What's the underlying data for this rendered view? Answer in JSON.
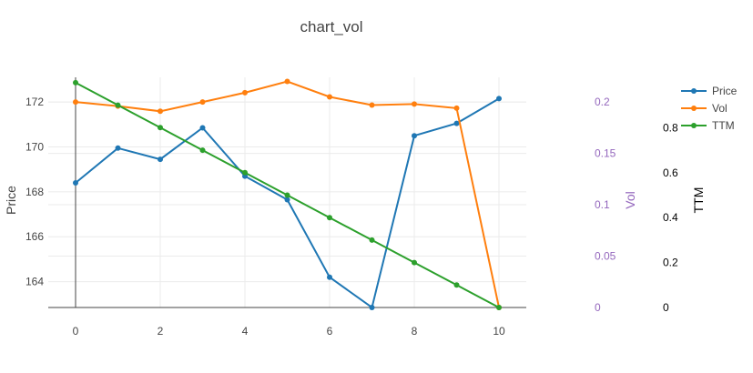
{
  "chart_data": {
    "type": "line",
    "title": "chart_vol",
    "x": [
      0,
      1,
      2,
      3,
      4,
      5,
      6,
      7,
      8,
      9,
      10
    ],
    "xticks": [
      0,
      2,
      4,
      6,
      8,
      10
    ],
    "series": [
      {
        "name": "Price",
        "color": "#1f77b4",
        "axis": "y",
        "values": [
          168.4,
          169.95,
          169.45,
          170.85,
          168.7,
          167.65,
          164.2,
          162.85,
          170.5,
          171.05,
          172.15
        ]
      },
      {
        "name": "Vol",
        "color": "#ff7f0e",
        "axis": "y2",
        "values": [
          0.2,
          0.196,
          0.191,
          0.2,
          0.209,
          0.22,
          0.205,
          0.197,
          0.198,
          0.194,
          0.0
        ]
      },
      {
        "name": "TTM",
        "color": "#2ca02c",
        "axis": "y3",
        "values": [
          1.0,
          0.9,
          0.8,
          0.7,
          0.6,
          0.5,
          0.4,
          0.3,
          0.2,
          0.1,
          0.0
        ]
      }
    ],
    "axes": {
      "y": {
        "label": "Price",
        "range": [
          162.85,
          173.1
        ],
        "ticks": [
          164,
          166,
          168,
          170,
          172
        ],
        "color": "#444444"
      },
      "y2": {
        "label": "Vol",
        "range": [
          0,
          0.224
        ],
        "ticks": [
          "0",
          "0.05",
          "0.1",
          "0.15",
          "0.2"
        ],
        "tick_values": [
          0,
          0.05,
          0.1,
          0.15,
          0.2
        ],
        "color": "#9467bd"
      },
      "y3": {
        "label": "TTM",
        "range": [
          0,
          1.024
        ],
        "ticks": [
          "0",
          "0.2",
          "0.4",
          "0.6",
          "0.8"
        ],
        "tick_values": [
          0,
          0.2,
          0.4,
          0.6,
          0.8
        ],
        "color": "#000000"
      }
    },
    "grid": true,
    "legend": "top-right"
  }
}
